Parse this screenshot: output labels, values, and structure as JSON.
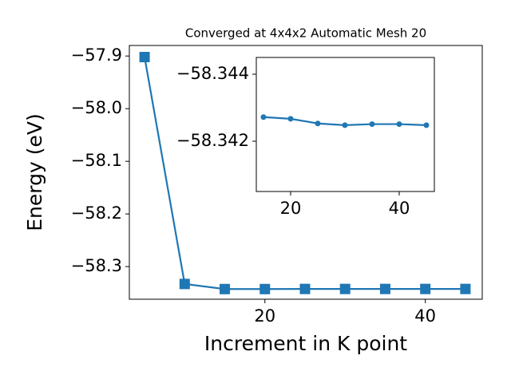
{
  "chart_data": [
    {
      "type": "line",
      "title": "Converged at 4x4x2 Automatic Mesh 20",
      "x_label": "Increment in K point",
      "y_label": "Energy (eV)",
      "series": [
        {
          "color": "#1f77b4",
          "marker": "square",
          "x": [
            5,
            10,
            15,
            20,
            25,
            30,
            35,
            40,
            45
          ],
          "values": [
            -57.902,
            -58.333,
            -58.3427,
            -58.3427,
            -58.3425,
            -58.3425,
            -58.3425,
            -58.3425,
            -58.3425
          ]
        }
      ],
      "xlim": [
        3.1,
        47.1
      ],
      "xticks": [
        20,
        40
      ],
      "ylim": [
        -58.362,
        -57.88
      ],
      "yticks": [
        {
          "value": -58.3,
          "label": "−58.3"
        },
        {
          "value": -58.2,
          "label": "−58.2"
        },
        {
          "value": -58.1,
          "label": "−58.1"
        },
        {
          "value": -58.0,
          "label": "−58.0"
        },
        {
          "value": -57.9,
          "label": "−57.9"
        }
      ]
    },
    {
      "type": "line",
      "series": [
        {
          "color": "#1f77b4",
          "marker": "circle",
          "x": [
            15,
            20,
            25,
            30,
            35,
            40,
            45
          ],
          "values": [
            -58.34272,
            -58.34267,
            -58.34253,
            -58.34248,
            -58.34251,
            -58.34251,
            -58.34248
          ]
        }
      ],
      "xlim": [
        13.68,
        46.47
      ],
      "xticks": [
        20,
        40
      ],
      "ylim": [
        -58.3405,
        -58.3445
      ],
      "yticks": [
        {
          "value": -58.342,
          "label": "−58.342"
        },
        {
          "value": -58.344,
          "label": "−58.344"
        }
      ]
    }
  ]
}
